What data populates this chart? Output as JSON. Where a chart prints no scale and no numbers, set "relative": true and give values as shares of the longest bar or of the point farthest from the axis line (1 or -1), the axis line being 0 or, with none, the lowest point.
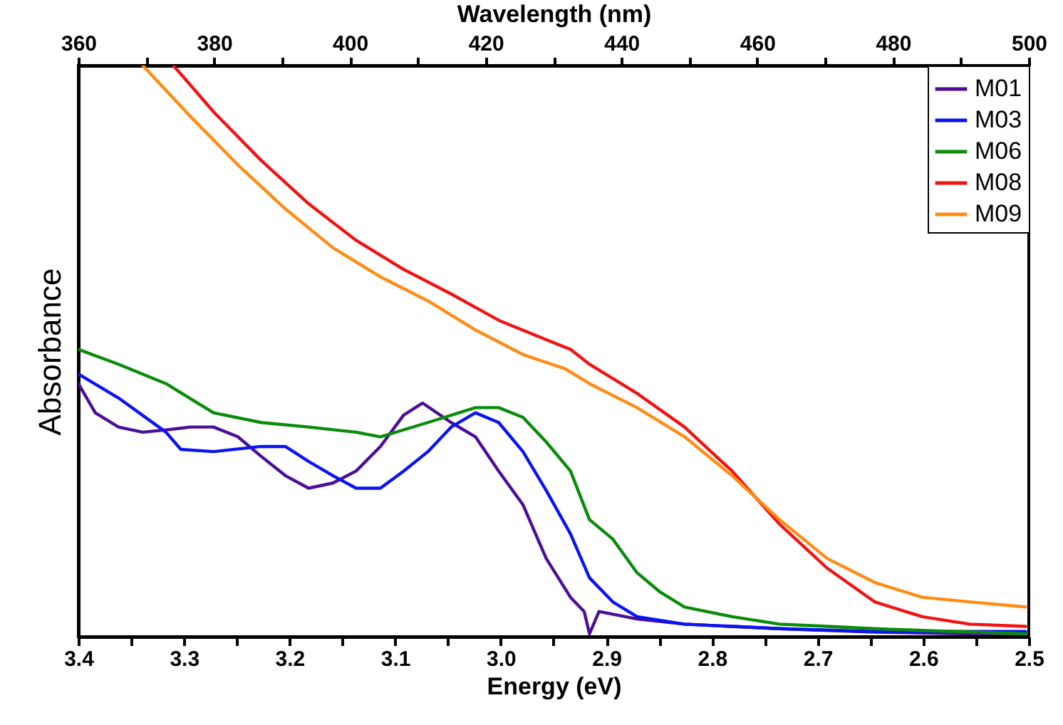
{
  "chart_data": {
    "type": "line",
    "relative": true,
    "xlabel": "Energy (eV)",
    "x2label": "Wavelength (nm)",
    "ylabel": "Absorbance",
    "xlim": [
      3.4,
      2.5
    ],
    "x2lim": [
      360,
      500
    ],
    "xticks": [
      3.4,
      {
        "value": 3.35,
        "label": null
      },
      3.3,
      {
        "value": 3.25,
        "label": null
      },
      3.2,
      {
        "value": 3.15,
        "label": null
      },
      3.1,
      {
        "value": 3.05,
        "label": null
      },
      {
        "value": 3,
        "label": "3.0"
      },
      {
        "value": 2.95,
        "label": null
      },
      2.9,
      {
        "value": 2.85,
        "label": null
      },
      2.8,
      {
        "value": 2.75,
        "label": null
      },
      2.7,
      {
        "value": 2.65,
        "label": null
      },
      2.6,
      {
        "value": 2.55,
        "label": null
      },
      2.5
    ],
    "x2ticks": [
      360,
      {
        "value": 370,
        "label": null
      },
      380,
      {
        "value": 390,
        "label": null
      },
      400,
      {
        "value": 410,
        "label": null
      },
      420,
      {
        "value": 430,
        "label": null
      },
      440,
      {
        "value": 450,
        "label": null
      },
      460,
      {
        "value": 470,
        "label": null
      },
      480,
      {
        "value": 490,
        "label": null
      },
      500
    ],
    "legend": "top right",
    "grid": false,
    "series": [
      {
        "name": "M01",
        "color": "#4b0f96",
        "x": [
          3.4,
          3.384,
          3.362,
          3.339,
          3.317,
          3.294,
          3.272,
          3.249,
          3.227,
          3.204,
          3.182,
          3.159,
          3.137,
          3.114,
          3.092,
          3.074,
          3.047,
          3.024,
          3.002,
          2.979,
          2.957,
          2.934,
          2.921,
          2.916,
          2.907,
          2.871,
          2.826,
          2.736,
          2.646,
          2.556,
          2.503
        ],
        "values": [
          0.443,
          0.392,
          0.367,
          0.358,
          0.362,
          0.367,
          0.367,
          0.35,
          0.316,
          0.282,
          0.26,
          0.269,
          0.29,
          0.333,
          0.388,
          0.409,
          0.375,
          0.35,
          0.29,
          0.231,
          0.137,
          0.069,
          0.044,
          0.005,
          0.044,
          0.031,
          0.022,
          0.014,
          0.008,
          0.005,
          0.005
        ]
      },
      {
        "name": "M03",
        "color": "#0a14f0",
        "x": [
          3.4,
          3.362,
          3.317,
          3.303,
          3.272,
          3.227,
          3.204,
          3.182,
          3.159,
          3.137,
          3.114,
          3.092,
          3.069,
          3.047,
          3.024,
          3.002,
          2.979,
          2.957,
          2.934,
          2.916,
          2.894,
          2.871,
          2.826,
          2.781,
          2.736,
          2.646,
          2.556,
          2.503
        ],
        "values": [
          0.46,
          0.418,
          0.358,
          0.328,
          0.324,
          0.333,
          0.333,
          0.307,
          0.282,
          0.26,
          0.26,
          0.29,
          0.324,
          0.367,
          0.392,
          0.375,
          0.324,
          0.256,
          0.18,
          0.103,
          0.061,
          0.035,
          0.022,
          0.018,
          0.014,
          0.009,
          0.009,
          0.009
        ]
      },
      {
        "name": "M06",
        "color": "#0a8c0a",
        "x": [
          3.4,
          3.362,
          3.317,
          3.272,
          3.227,
          3.182,
          3.137,
          3.114,
          3.069,
          3.024,
          3.002,
          2.979,
          2.957,
          2.934,
          2.916,
          2.894,
          2.871,
          2.849,
          2.826,
          2.781,
          2.736,
          2.691,
          2.646,
          2.601,
          2.503
        ],
        "values": [
          0.503,
          0.477,
          0.443,
          0.392,
          0.375,
          0.367,
          0.358,
          0.35,
          0.375,
          0.401,
          0.401,
          0.384,
          0.341,
          0.29,
          0.205,
          0.171,
          0.112,
          0.078,
          0.052,
          0.035,
          0.022,
          0.018,
          0.014,
          0.011,
          0.005
        ]
      },
      {
        "name": "M08",
        "color": "#f01414",
        "x": [
          3.31,
          3.272,
          3.227,
          3.182,
          3.137,
          3.092,
          3.047,
          3.002,
          2.957,
          2.934,
          2.916,
          2.871,
          2.826,
          2.781,
          2.736,
          2.691,
          2.646,
          2.601,
          2.556,
          2.503
        ],
        "values": [
          1,
          0.919,
          0.834,
          0.758,
          0.694,
          0.643,
          0.6,
          0.554,
          0.52,
          0.503,
          0.477,
          0.426,
          0.367,
          0.29,
          0.197,
          0.12,
          0.061,
          0.035,
          0.022,
          0.018
        ]
      },
      {
        "name": "M09",
        "color": "#ff8c14",
        "x": [
          3.339,
          3.294,
          3.249,
          3.204,
          3.159,
          3.114,
          3.069,
          3.024,
          2.979,
          2.939,
          2.916,
          2.871,
          2.826,
          2.781,
          2.736,
          2.691,
          2.646,
          2.601,
          2.556,
          2.503
        ],
        "values": [
          1,
          0.911,
          0.826,
          0.749,
          0.681,
          0.63,
          0.588,
          0.537,
          0.494,
          0.469,
          0.443,
          0.401,
          0.35,
          0.282,
          0.205,
          0.137,
          0.095,
          0.069,
          0.061,
          0.052
        ]
      }
    ]
  }
}
